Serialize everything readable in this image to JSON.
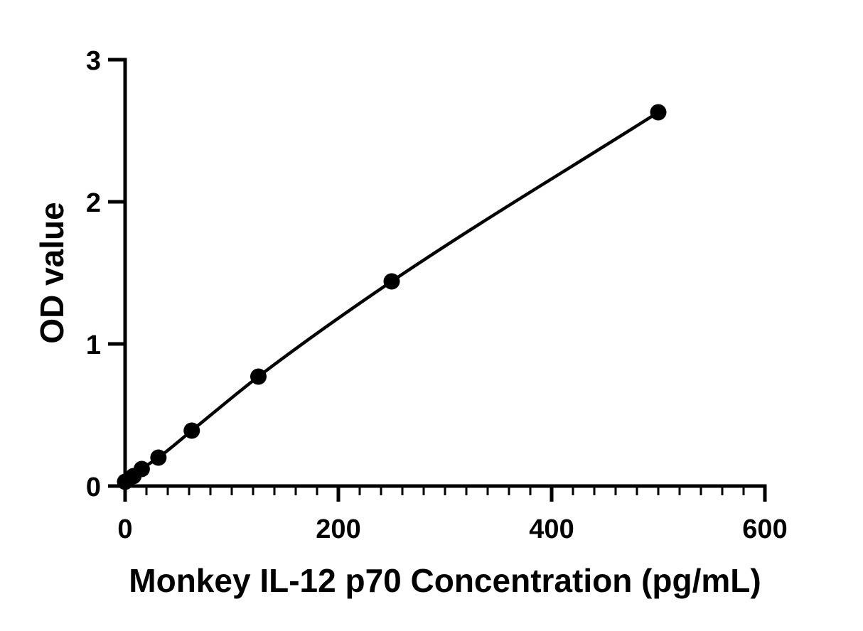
{
  "chart_data": {
    "type": "scatter",
    "title": "",
    "xlabel": "Monkey IL-12 p70 Concentration (pg/mL)",
    "ylabel": "OD value",
    "xlim": [
      0,
      600
    ],
    "ylim": [
      0,
      3
    ],
    "x_ticks": [
      {
        "value": 0,
        "label": "0"
      },
      {
        "value": 200,
        "label": "200"
      },
      {
        "value": 400,
        "label": "400"
      },
      {
        "value": 600,
        "label": "600"
      }
    ],
    "x_minor_step": 20,
    "y_ticks": [
      {
        "value": 0,
        "label": "0"
      },
      {
        "value": 1,
        "label": "1"
      },
      {
        "value": 2,
        "label": "2"
      },
      {
        "value": 3,
        "label": "3"
      }
    ],
    "grid": false,
    "legend": "none",
    "series": [
      {
        "x": [
          0,
          7.8,
          15.6,
          31.25,
          62.5,
          125,
          250,
          500
        ],
        "y": [
          0.03,
          0.07,
          0.12,
          0.2,
          0.39,
          0.77,
          1.44,
          2.63
        ],
        "color": "#000000",
        "fit": "curve"
      }
    ]
  }
}
